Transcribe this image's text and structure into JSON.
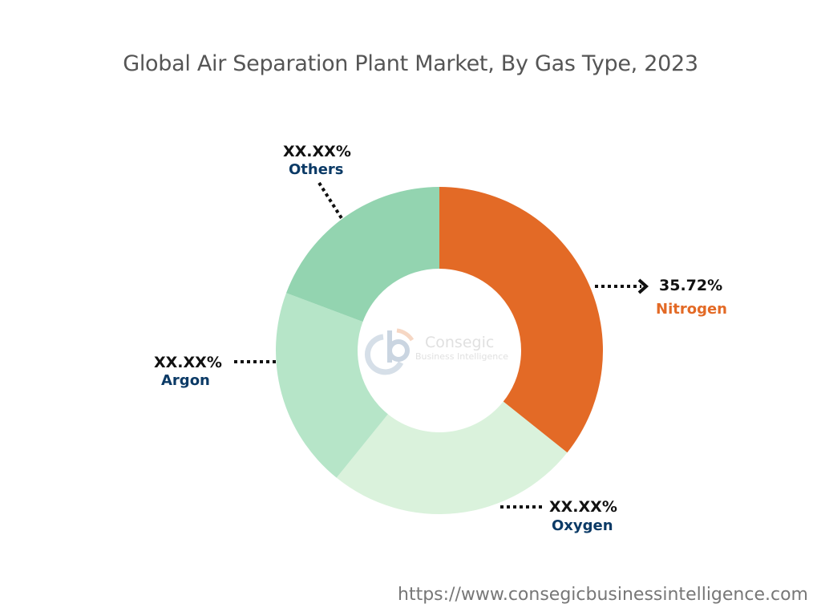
{
  "chart_data": {
    "type": "pie",
    "variant": "donut",
    "title": "Global Air Separation Plant Market, By Gas Type, 2023",
    "categories": [
      "Nitrogen",
      "Oxygen",
      "Argon",
      "Others"
    ],
    "values": [
      35.72,
      25.1,
      19.9,
      19.28
    ],
    "data_labels": [
      "35.72%",
      "XX.XX%",
      "XX.XX%",
      "XX.XX%"
    ],
    "colors": [
      "#e36a26",
      "#daf2dc",
      "#b6e5c8",
      "#93d4b0"
    ],
    "label_colors": [
      "#e36a26",
      "#0b3a66",
      "#0b3a66",
      "#0b3a66"
    ]
  },
  "watermark": {
    "name": "Consegic",
    "tagline": "Business Intelligence"
  },
  "footer": {
    "url": "https://www.consegicbusinessintelligence.com"
  }
}
